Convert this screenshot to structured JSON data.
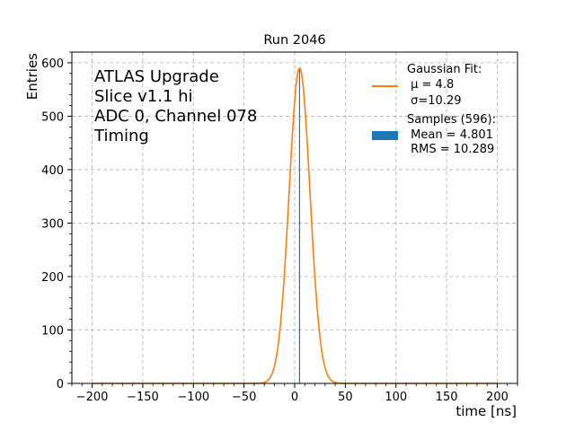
{
  "chart_data": {
    "type": "line",
    "title": "Run 2046",
    "xlabel": "time [ns]",
    "ylabel": "Entries",
    "xlim": [
      -220,
      220
    ],
    "ylim": [
      0,
      620
    ],
    "xticks": [
      -200,
      -150,
      -100,
      -50,
      0,
      50,
      100,
      150,
      200
    ],
    "xtick_labels": [
      "−200",
      "−150",
      "−100",
      "−50",
      "0",
      "50",
      "100",
      "150",
      "200"
    ],
    "yticks": [
      0,
      100,
      200,
      300,
      400,
      500,
      600
    ],
    "ytick_labels": [
      "0",
      "100",
      "200",
      "300",
      "400",
      "500",
      "600"
    ],
    "grid": true,
    "info_lines": [
      "ATLAS Upgrade",
      "Slice v1.1 hi",
      "ADC 0, Channel 078",
      "Timing"
    ],
    "series": [
      {
        "name": "Gaussian Fit",
        "kind": "gaussian",
        "color": "#ff7f0e",
        "amplitude": 590,
        "mean": 4.8,
        "sigma": 10.29,
        "x_range": [
          -200,
          200
        ]
      },
      {
        "name": "Samples",
        "kind": "histogram",
        "color": "#1f77b4",
        "count": 596,
        "mean": 4.801,
        "rms": 10.289,
        "samples_x": [
          4.8
        ],
        "samples_y": [
          590
        ]
      }
    ],
    "legend": {
      "position": "top-right",
      "fit_lines": [
        "Gaussian Fit:",
        " μ = 4.8",
        " σ=10.29"
      ],
      "sample_lines": [
        "Samples (596):",
        " Mean = 4.801",
        " RMS = 10.289"
      ]
    }
  }
}
